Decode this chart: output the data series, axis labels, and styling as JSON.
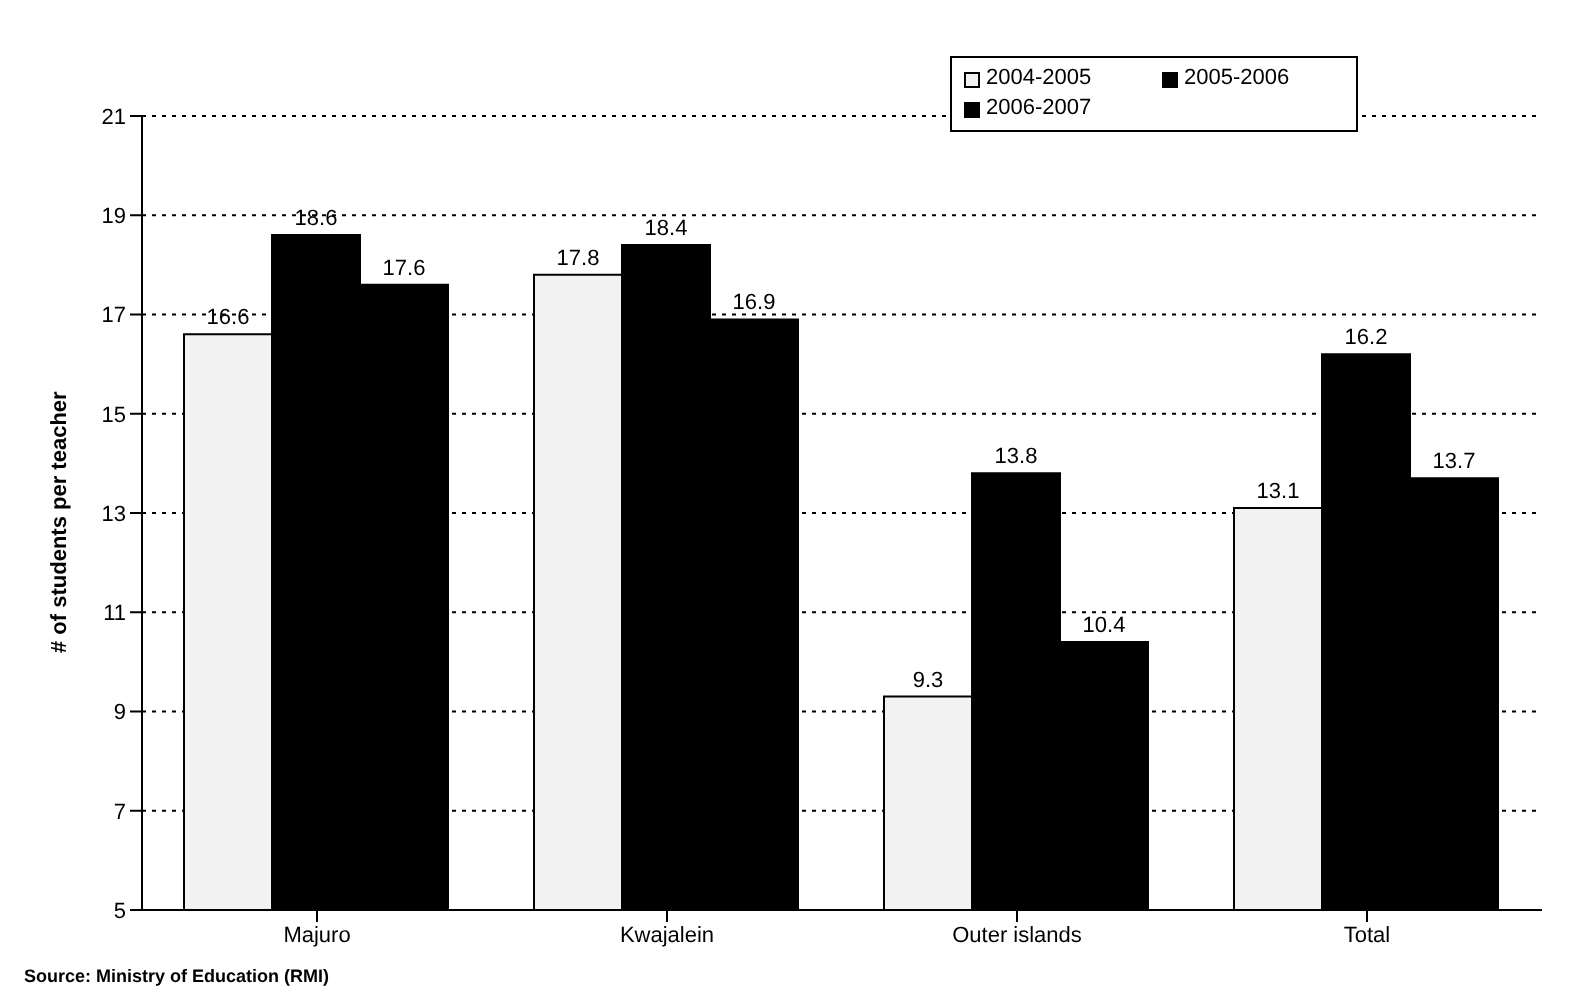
{
  "chart_data": {
    "type": "bar",
    "ylabel": "# of students per teacher",
    "categories": [
      "Majuro",
      "Kwajalein",
      "Outer islands",
      "Total"
    ],
    "series": [
      {
        "name": "2004-2005",
        "color": "#f2f2f2",
        "values": [
          16.6,
          17.8,
          9.3,
          13.1
        ]
      },
      {
        "name": "2005-2006",
        "color": "#000000",
        "values": [
          18.6,
          18.4,
          13.8,
          16.2
        ]
      },
      {
        "name": "2006-2007",
        "color": "#000000",
        "values": [
          17.6,
          16.9,
          10.4,
          13.7
        ]
      }
    ],
    "ylim": [
      5,
      21
    ],
    "yticks": [
      5,
      7,
      9,
      11,
      13,
      15,
      17,
      19,
      21
    ],
    "grid": "y",
    "legend": "top right",
    "data_labels": true,
    "annotations": [
      "Source: Ministry of Education (RMI)"
    ]
  }
}
